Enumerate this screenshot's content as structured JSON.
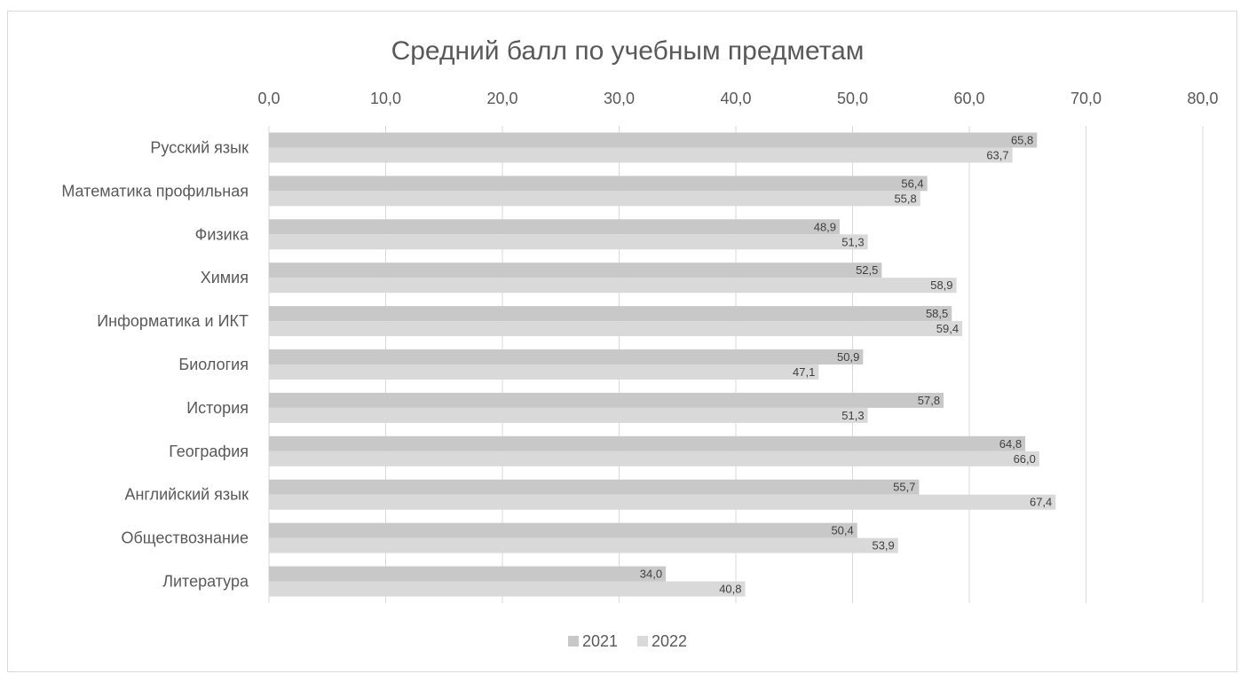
{
  "chart_data": {
    "type": "bar",
    "orientation": "horizontal",
    "title": "Средний балл по учебным предметам",
    "categories": [
      "Русский язык",
      "Математика профильная",
      "Физика",
      "Химия",
      "Информатика и ИКТ",
      "Биология",
      "История",
      "География",
      "Английский язык",
      "Обществознание",
      "Литература"
    ],
    "series": [
      {
        "name": "2021",
        "color": "#c8c8c8",
        "values": [
          65.8,
          56.4,
          48.9,
          52.5,
          58.5,
          50.9,
          57.8,
          64.8,
          55.7,
          50.4,
          34.0
        ],
        "labels": [
          "65,8",
          "56,4",
          "48,9",
          "52,5",
          "58,5",
          "50,9",
          "57,8",
          "64,8",
          "55,7",
          "50,4",
          "34,0"
        ]
      },
      {
        "name": "2022",
        "color": "#d9d9d9",
        "values": [
          63.7,
          55.8,
          51.3,
          58.9,
          59.4,
          47.1,
          51.3,
          66.0,
          67.4,
          53.9,
          40.8
        ],
        "labels": [
          "63,7",
          "55,8",
          "51,3",
          "58,9",
          "59,4",
          "47,1",
          "51,3",
          "66,0",
          "67,4",
          "53,9",
          "40,8"
        ]
      }
    ],
    "xlim": [
      0,
      80
    ],
    "xticks": [
      "0,0",
      "10,0",
      "20,0",
      "30,0",
      "40,0",
      "50,0",
      "60,0",
      "70,0",
      "80,0"
    ],
    "x_axis_position": "top",
    "grid": true,
    "legend": "bottom",
    "grid_color": "#d9d9d9"
  }
}
